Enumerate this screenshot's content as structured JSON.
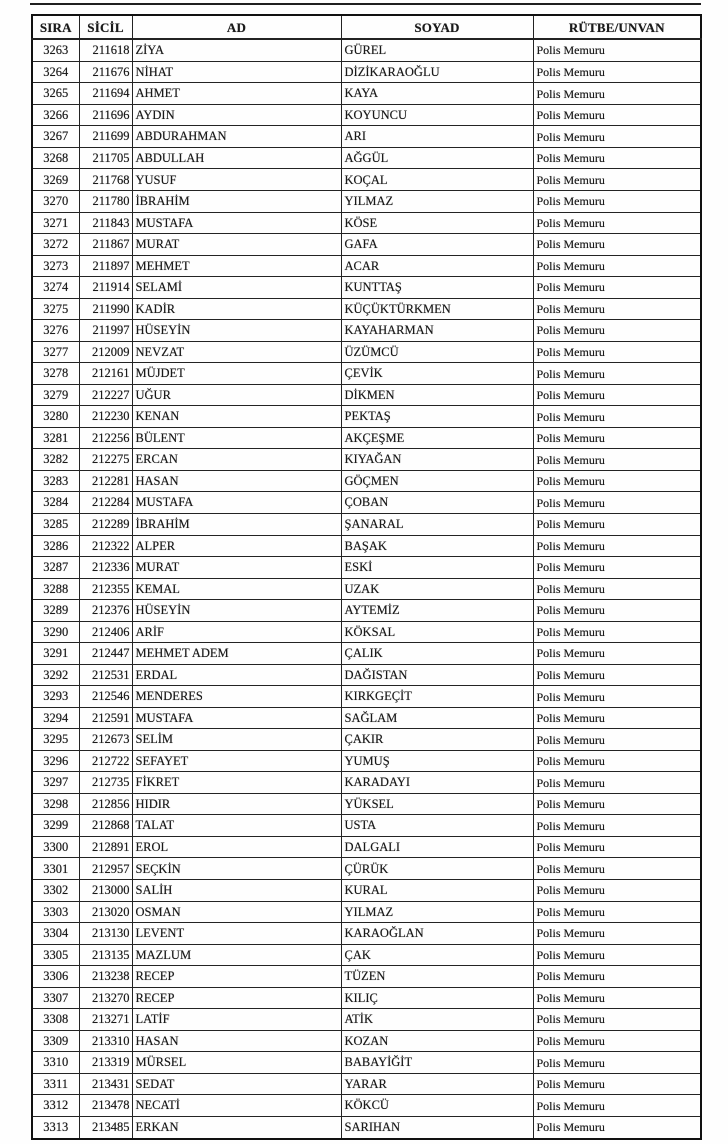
{
  "table": {
    "columns": [
      "SIRA",
      "SİCİL",
      "AD",
      "SOYAD",
      "RÜTBE/UNVAN"
    ],
    "rows": [
      [
        "3263",
        "211618",
        "ZİYA",
        "GÜREL",
        "Polis Memuru"
      ],
      [
        "3264",
        "211676",
        "NİHAT",
        "DİZİKARAOĞLU",
        "Polis Memuru"
      ],
      [
        "3265",
        "211694",
        "AHMET",
        "KAYA",
        "Polis Memuru"
      ],
      [
        "3266",
        "211696",
        "AYDIN",
        "KOYUNCU",
        "Polis Memuru"
      ],
      [
        "3267",
        "211699",
        "ABDURAHMAN",
        "ARI",
        "Polis Memuru"
      ],
      [
        "3268",
        "211705",
        "ABDULLAH",
        "AĞGÜL",
        "Polis Memuru"
      ],
      [
        "3269",
        "211768",
        "YUSUF",
        "KOÇAL",
        "Polis Memuru"
      ],
      [
        "3270",
        "211780",
        "İBRAHİM",
        "YILMAZ",
        "Polis Memuru"
      ],
      [
        "3271",
        "211843",
        "MUSTAFA",
        "KÖSE",
        "Polis Memuru"
      ],
      [
        "3272",
        "211867",
        "MURAT",
        "GAFA",
        "Polis Memuru"
      ],
      [
        "3273",
        "211897",
        "MEHMET",
        "ACAR",
        "Polis Memuru"
      ],
      [
        "3274",
        "211914",
        "SELAMİ",
        "KUNTTAŞ",
        "Polis Memuru"
      ],
      [
        "3275",
        "211990",
        "KADİR",
        "KÜÇÜKTÜRKMEN",
        "Polis Memuru"
      ],
      [
        "3276",
        "211997",
        "HÜSEYİN",
        "KAYAHARMAN",
        "Polis Memuru"
      ],
      [
        "3277",
        "212009",
        "NEVZAT",
        "ÜZÜMCÜ",
        "Polis Memuru"
      ],
      [
        "3278",
        "212161",
        "MÜJDET",
        "ÇEVİK",
        "Polis Memuru"
      ],
      [
        "3279",
        "212227",
        "UĞUR",
        "DİKMEN",
        "Polis Memuru"
      ],
      [
        "3280",
        "212230",
        "KENAN",
        "PEKTAŞ",
        "Polis Memuru"
      ],
      [
        "3281",
        "212256",
        "BÜLENT",
        "AKÇEŞME",
        "Polis Memuru"
      ],
      [
        "3282",
        "212275",
        "ERCAN",
        "KIYAĞAN",
        "Polis Memuru"
      ],
      [
        "3283",
        "212281",
        "HASAN",
        "GÖÇMEN",
        "Polis Memuru"
      ],
      [
        "3284",
        "212284",
        "MUSTAFA",
        "ÇOBAN",
        "Polis Memuru"
      ],
      [
        "3285",
        "212289",
        "İBRAHİM",
        "ŞANARAL",
        "Polis Memuru"
      ],
      [
        "3286",
        "212322",
        "ALPER",
        "BAŞAK",
        "Polis Memuru"
      ],
      [
        "3287",
        "212336",
        "MURAT",
        "ESKİ",
        "Polis Memuru"
      ],
      [
        "3288",
        "212355",
        "KEMAL",
        "UZAK",
        "Polis Memuru"
      ],
      [
        "3289",
        "212376",
        "HÜSEYİN",
        "AYTEMİZ",
        "Polis Memuru"
      ],
      [
        "3290",
        "212406",
        "ARİF",
        "KÖKSAL",
        "Polis Memuru"
      ],
      [
        "3291",
        "212447",
        "MEHMET ADEM",
        "ÇALIK",
        "Polis Memuru"
      ],
      [
        "3292",
        "212531",
        "ERDAL",
        "DAĞISTAN",
        "Polis Memuru"
      ],
      [
        "3293",
        "212546",
        "MENDERES",
        "KIRKGEÇİT",
        "Polis Memuru"
      ],
      [
        "3294",
        "212591",
        "MUSTAFA",
        "SAĞLAM",
        "Polis Memuru"
      ],
      [
        "3295",
        "212673",
        "SELİM",
        "ÇAKIR",
        "Polis Memuru"
      ],
      [
        "3296",
        "212722",
        "SEFAYET",
        "YUMUŞ",
        "Polis Memuru"
      ],
      [
        "3297",
        "212735",
        "FİKRET",
        "KARADAYI",
        "Polis Memuru"
      ],
      [
        "3298",
        "212856",
        "HIDIR",
        "YÜKSEL",
        "Polis Memuru"
      ],
      [
        "3299",
        "212868",
        "TALAT",
        "USTA",
        "Polis Memuru"
      ],
      [
        "3300",
        "212891",
        "EROL",
        "DALGALI",
        "Polis Memuru"
      ],
      [
        "3301",
        "212957",
        "SEÇKİN",
        "ÇÜRÜK",
        "Polis Memuru"
      ],
      [
        "3302",
        "213000",
        "SALİH",
        "KURAL",
        "Polis Memuru"
      ],
      [
        "3303",
        "213020",
        "OSMAN",
        "YILMAZ",
        "Polis Memuru"
      ],
      [
        "3304",
        "213130",
        "LEVENT",
        "KARAOĞLAN",
        "Polis Memuru"
      ],
      [
        "3305",
        "213135",
        "MAZLUM",
        "ÇAK",
        "Polis Memuru"
      ],
      [
        "3306",
        "213238",
        "RECEP",
        "TÜZEN",
        "Polis Memuru"
      ],
      [
        "3307",
        "213270",
        "RECEP",
        "KILIÇ",
        "Polis Memuru"
      ],
      [
        "3308",
        "213271",
        "LATİF",
        "ATİK",
        "Polis Memuru"
      ],
      [
        "3309",
        "213310",
        "HASAN",
        "KOZAN",
        "Polis Memuru"
      ],
      [
        "3310",
        "213319",
        "MÜRSEL",
        "BABAYİĞİT",
        "Polis Memuru"
      ],
      [
        "3311",
        "213431",
        "SEDAT",
        "YARAR",
        "Polis Memuru"
      ],
      [
        "3312",
        "213478",
        "NECATİ",
        "KÖKCÜ",
        "Polis Memuru"
      ],
      [
        "3313",
        "213485",
        "ERKAN",
        "SARIHAN",
        "Polis Memuru"
      ]
    ]
  }
}
